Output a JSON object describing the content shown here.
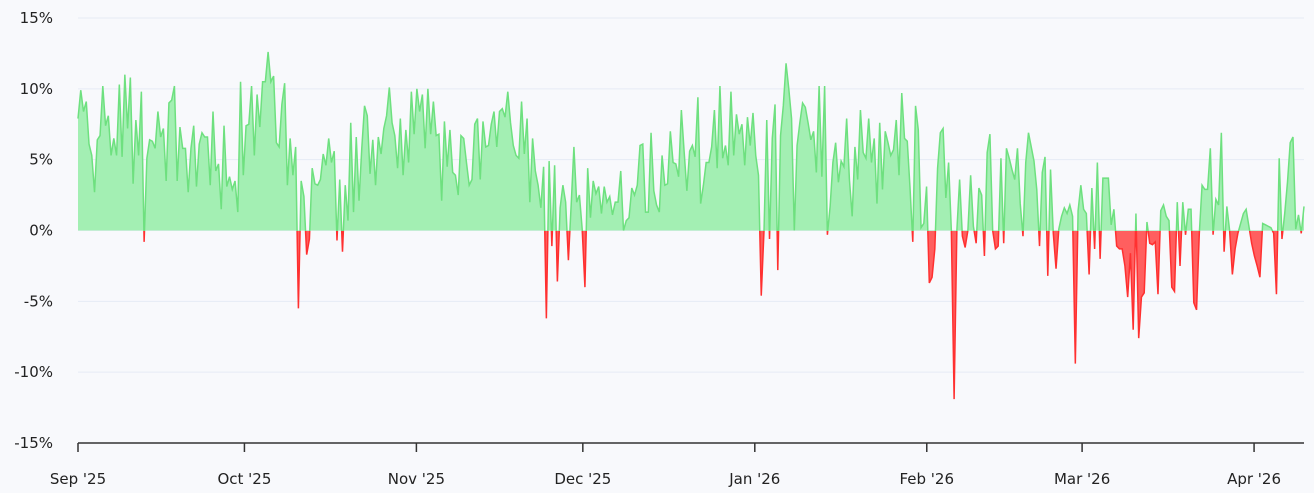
{
  "chart_data": {
    "type": "area",
    "title": "",
    "xlabel": "",
    "ylabel": "",
    "xlim": [
      "2025-09-01",
      "2026-04-10"
    ],
    "ylim": [
      -15,
      15
    ],
    "y_unit": "%",
    "grid": true,
    "legend": "none",
    "y_ticks": [
      15,
      10,
      5,
      0,
      -5,
      -10,
      -15
    ],
    "y_tick_labels": [
      "15%",
      "10%",
      "5%",
      "0%",
      "-5%",
      "-10%",
      "-15%"
    ],
    "x_ticks": [
      "2025-09-01",
      "2025-10-01",
      "2025-11-01",
      "2025-12-01",
      "2026-01-01",
      "2026-02-01",
      "2026-03-01",
      "2026-04-01"
    ],
    "x_tick_labels": [
      "Sep '25",
      "Oct '25",
      "Nov '25",
      "Dec '25",
      "Jan '26",
      "Feb '26",
      "Mar '26",
      "Apr '26"
    ],
    "colors": {
      "positive_fill": "#a3efb3",
      "positive_line": "#6ee07f",
      "negative_fill": "#ff5f5f",
      "negative_line": "#ff3030",
      "grid": "#e6ebf5",
      "background": "#f8f9fc"
    },
    "series": [
      {
        "values": [
          7.9,
          9.9,
          8.4,
          9.1,
          6.1,
          5.3,
          2.7,
          6.4,
          6.7,
          10.2,
          7.4,
          8.1,
          5.3,
          6.5,
          5.3,
          10.3,
          5.2,
          11,
          7.2,
          10.8,
          3.3,
          7.8,
          5.3,
          9.8,
          -0.8,
          5.1,
          6.4,
          6.3,
          5.8,
          8.4,
          6.6,
          7.2,
          3.5,
          9,
          9.2,
          10.2,
          3.5,
          7.3,
          5.8,
          5.8,
          2.7,
          5.8,
          7.4,
          3.1,
          6.1,
          6.9,
          6.6,
          6.6,
          3.2,
          8.4,
          4.2,
          4.7,
          1.5,
          7.4,
          3.1,
          3.8,
          2.9,
          3.5,
          1.3,
          10.5,
          3.9,
          7.4,
          7.5,
          10.2,
          5.3,
          9.6,
          7.3,
          10.5,
          10.5,
          12.6,
          10.5,
          10.9,
          6.2,
          5.9,
          8.9,
          10.4,
          3.2,
          6.5,
          3.9,
          5.9,
          -5.5,
          3.5,
          2.4,
          -1.7,
          -0.6,
          4.4,
          3.3,
          3.2,
          3.6,
          5.4,
          4.6,
          6.5,
          4.8,
          5.6,
          -0.7,
          3.6,
          -1.5,
          3.2,
          0.7,
          7.6,
          1.3,
          6.6,
          2.1,
          5.8,
          8.8,
          8.1,
          4,
          6.4,
          3.2,
          6.6,
          5.4,
          7.2,
          8.1,
          10.1,
          7.6,
          6.7,
          4.4,
          7.9,
          3.9,
          7.1,
          4.8,
          9.8,
          6.8,
          10,
          8.4,
          9.6,
          5.8,
          10,
          6.8,
          9.1,
          6.7,
          6.8,
          2.1,
          7.7,
          4.5,
          7.1,
          4.1,
          3.9,
          2.5,
          6.7,
          6.5,
          4.8,
          3.2,
          3.6,
          7.5,
          7.9,
          3.6,
          7.7,
          5.9,
          6,
          7.5,
          8.4,
          5.9,
          8.4,
          8.6,
          8,
          9.8,
          7.6,
          6,
          5.3,
          5.1,
          9.1,
          5.4,
          7.9,
          2,
          6.5,
          4.2,
          3.2,
          1.6,
          4.5,
          -6.2,
          4.9,
          -1.1,
          4.6,
          -3.6,
          1.6,
          3.2,
          2,
          -2.1,
          1.8,
          5.9,
          2,
          2.5,
          0.1,
          -4,
          4.4,
          0.9,
          3.5,
          2.6,
          3.1,
          1.2,
          3.1,
          2,
          2.4,
          1.1,
          2,
          2,
          4.2,
          0,
          0.7,
          0.9,
          3,
          2.5,
          3.2,
          6,
          6.1,
          1.3,
          1.3,
          6.9,
          2.8,
          1.8,
          1.3,
          5.3,
          3.2,
          3.3,
          7,
          4.8,
          4.7,
          3.8,
          8.5,
          5.6,
          2.8,
          5.6,
          6,
          5.2,
          9.4,
          1.9,
          3.2,
          4.8,
          4.8,
          5.9,
          8.5,
          4.4,
          10.2,
          5.1,
          6,
          4.6,
          9.8,
          5.3,
          8.2,
          6.8,
          7.5,
          4.6,
          8,
          6,
          8.3,
          5.3,
          3.9,
          -4.6,
          0,
          7.8,
          -0.6,
          6.5,
          8.9,
          -2.8,
          6.7,
          8.8,
          11.8,
          10,
          7.9,
          0,
          6,
          7.6,
          9,
          8.7,
          7.6,
          6.4,
          7,
          4.1,
          10.2,
          3.8,
          10.2,
          -0.3,
          1.7,
          4.8,
          6.2,
          3.4,
          4.9,
          4.5,
          7.9,
          3.6,
          1,
          5.9,
          3.6,
          8.5,
          5.5,
          5.1,
          7.9,
          4.8,
          6.5,
          1.9,
          7.6,
          2.9,
          7,
          6.2,
          5.3,
          5.7,
          7.8,
          3.9,
          9.7,
          6.5,
          6.3,
          3,
          -0.8,
          8.8,
          7.1,
          0.2,
          0.5,
          3.1,
          -3.7,
          -3.3,
          -1.3,
          4.4,
          6.9,
          7.2,
          2.3,
          4.8,
          0,
          -11.9,
          0,
          3.6,
          -0.4,
          -1.2,
          0,
          3.9,
          0.3,
          -0.9,
          3,
          2.5,
          -1.8,
          5.5,
          6.8,
          0,
          -1.3,
          -1.1,
          5.1,
          -0.9,
          5.8,
          5.1,
          4.3,
          3.6,
          5.8,
          1.9,
          -0.4,
          4.8,
          6.9,
          5.9,
          4.9,
          2.9,
          -1.1,
          4.1,
          5.2,
          -3.2,
          4.3,
          -0.2,
          -2.7,
          0.1,
          1,
          1.6,
          1.2,
          1.8,
          1,
          -9.4,
          1.4,
          3.2,
          1.5,
          1.2,
          -3.1,
          3,
          -1.3,
          4.8,
          -2,
          3.7,
          3.7,
          3.7,
          0.4,
          1.5,
          -1.1,
          -1.3,
          -1.3,
          -2.5,
          -4.7,
          -1.6,
          -7,
          1.2,
          -7.6,
          -4.7,
          -4.4,
          0.6,
          -0.9,
          -1,
          -0.8,
          -4.5,
          1.4,
          1.8,
          1,
          0.7,
          -4,
          -4.3,
          2,
          -2.5,
          2,
          -0.3,
          1.5,
          1.5,
          -5.1,
          -5.6,
          -0.2,
          3.2,
          2.9,
          2.9,
          5.8,
          -0.3,
          2.2,
          1.8,
          6.9,
          -1.5,
          1.7,
          0,
          -3.1,
          -1.3,
          -0.2,
          0.5,
          1.2,
          1.5,
          0.3,
          -0.9,
          -1.8,
          -2.5,
          -3.3,
          0.5,
          0.4,
          0.3,
          0.2,
          -0.2,
          -4.5,
          5.1,
          -0.6,
          1.2,
          3.4,
          6.2,
          6.6,
          0.1,
          1.1,
          -0.2,
          1.7
        ]
      }
    ]
  }
}
